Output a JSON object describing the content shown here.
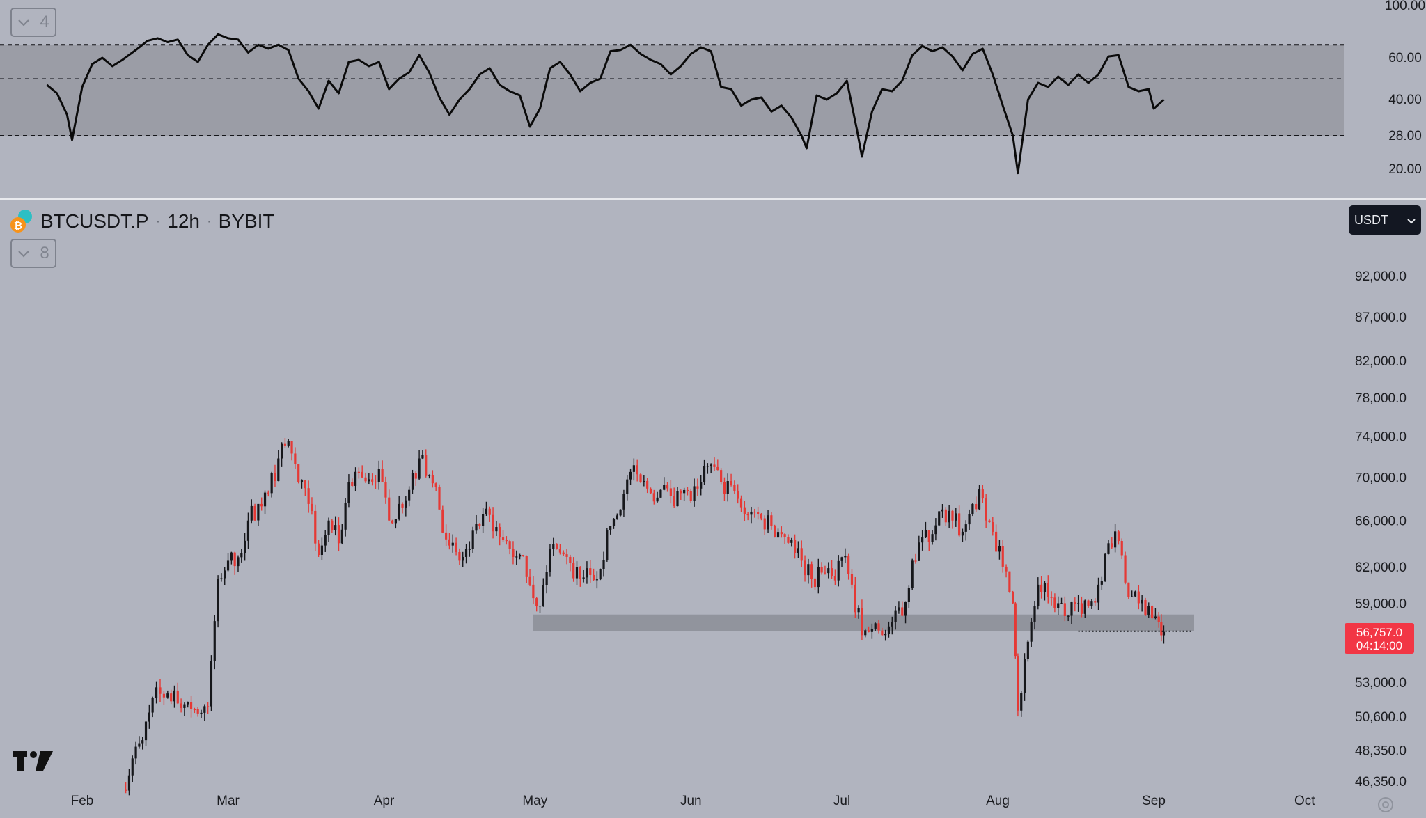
{
  "rsi_pane": {
    "collapse_count": "4",
    "axis_labels": [
      "100.00",
      "60.00",
      "40.00",
      "28.00",
      "20.00"
    ]
  },
  "header": {
    "symbol": "BTCUSDT.P",
    "interval": "12h",
    "exchange": "BYBIT",
    "currency": "USDT",
    "collapse_count": "8"
  },
  "price_axis": [
    "92,000.0",
    "87,000.0",
    "82,000.0",
    "78,000.0",
    "74,000.0",
    "70,000.0",
    "66,000.0",
    "62,000.0",
    "59,000.0",
    "53,000.0",
    "50,600.0",
    "48,350.0",
    "46,350.0"
  ],
  "last_price": {
    "price": "56,757.0",
    "countdown": "04:14:00",
    "color": "#f23645"
  },
  "time_axis": [
    "Feb",
    "Mar",
    "Apr",
    "May",
    "Jun",
    "Jul",
    "Aug",
    "Sep",
    "Oct"
  ],
  "colors": {
    "background": "#b1b4bf",
    "band": "#9b9da6",
    "up_candle": "#16171b",
    "down_candle": "#e53935",
    "rsi_line": "#0b0b0b",
    "zone": "#8c8e97"
  },
  "chart_data": [
    {
      "type": "line",
      "name": "rsi",
      "x_range": [
        "2024-02-01",
        "2024-09-03"
      ],
      "ylim": [
        0,
        100
      ],
      "band": [
        28,
        70
      ],
      "midline": 50,
      "points": [
        [
          "2024-01-25",
          47
        ],
        [
          "2024-01-27",
          43
        ],
        [
          "2024-01-29",
          35
        ],
        [
          "2024-01-30",
          27
        ],
        [
          "2024-02-01",
          46
        ],
        [
          "2024-02-03",
          57
        ],
        [
          "2024-02-05",
          60
        ],
        [
          "2024-02-07",
          56
        ],
        [
          "2024-02-09",
          59
        ],
        [
          "2024-02-12",
          67
        ],
        [
          "2024-02-14",
          73
        ],
        [
          "2024-02-16",
          75
        ],
        [
          "2024-02-18",
          72
        ],
        [
          "2024-02-20",
          74
        ],
        [
          "2024-02-22",
          62
        ],
        [
          "2024-02-24",
          58
        ],
        [
          "2024-02-26",
          70
        ],
        [
          "2024-02-28",
          78
        ],
        [
          "2024-03-01",
          75
        ],
        [
          "2024-03-03",
          74
        ],
        [
          "2024-03-05",
          64
        ],
        [
          "2024-03-07",
          70
        ],
        [
          "2024-03-09",
          67
        ],
        [
          "2024-03-11",
          70
        ],
        [
          "2024-03-13",
          66
        ],
        [
          "2024-03-15",
          50
        ],
        [
          "2024-03-17",
          44
        ],
        [
          "2024-03-19",
          37
        ],
        [
          "2024-03-21",
          49
        ],
        [
          "2024-03-23",
          43
        ],
        [
          "2024-03-25",
          58
        ],
        [
          "2024-03-27",
          59
        ],
        [
          "2024-03-29",
          56
        ],
        [
          "2024-03-31",
          58
        ],
        [
          "2024-04-02",
          45
        ],
        [
          "2024-04-04",
          50
        ],
        [
          "2024-04-06",
          53
        ],
        [
          "2024-04-08",
          62
        ],
        [
          "2024-04-10",
          53
        ],
        [
          "2024-04-12",
          41
        ],
        [
          "2024-04-14",
          35
        ],
        [
          "2024-04-16",
          40
        ],
        [
          "2024-04-18",
          45
        ],
        [
          "2024-04-20",
          52
        ],
        [
          "2024-04-22",
          55
        ],
        [
          "2024-04-24",
          47
        ],
        [
          "2024-04-26",
          44
        ],
        [
          "2024-04-28",
          42
        ],
        [
          "2024-04-30",
          31
        ],
        [
          "2024-05-02",
          37
        ],
        [
          "2024-05-04",
          55
        ],
        [
          "2024-05-06",
          58
        ],
        [
          "2024-05-08",
          52
        ],
        [
          "2024-05-10",
          44
        ],
        [
          "2024-05-12",
          48
        ],
        [
          "2024-05-14",
          50
        ],
        [
          "2024-05-16",
          65
        ],
        [
          "2024-05-18",
          66
        ],
        [
          "2024-05-20",
          70
        ],
        [
          "2024-05-22",
          63
        ],
        [
          "2024-05-24",
          59
        ],
        [
          "2024-05-26",
          57
        ],
        [
          "2024-05-28",
          52
        ],
        [
          "2024-05-30",
          56
        ],
        [
          "2024-06-01",
          63
        ],
        [
          "2024-06-03",
          68
        ],
        [
          "2024-06-05",
          65
        ],
        [
          "2024-06-07",
          46
        ],
        [
          "2024-06-09",
          45
        ],
        [
          "2024-06-11",
          38
        ],
        [
          "2024-06-13",
          40
        ],
        [
          "2024-06-15",
          41
        ],
        [
          "2024-06-17",
          36
        ],
        [
          "2024-06-19",
          38
        ],
        [
          "2024-06-21",
          34
        ],
        [
          "2024-06-23",
          28
        ],
        [
          "2024-06-24",
          25
        ],
        [
          "2024-06-26",
          42
        ],
        [
          "2024-06-28",
          40
        ],
        [
          "2024-06-30",
          43
        ],
        [
          "2024-07-02",
          49
        ],
        [
          "2024-07-04",
          30
        ],
        [
          "2024-07-05",
          23
        ],
        [
          "2024-07-07",
          36
        ],
        [
          "2024-07-09",
          45
        ],
        [
          "2024-07-11",
          44
        ],
        [
          "2024-07-13",
          49
        ],
        [
          "2024-07-15",
          62
        ],
        [
          "2024-07-17",
          69
        ],
        [
          "2024-07-19",
          65
        ],
        [
          "2024-07-21",
          68
        ],
        [
          "2024-07-23",
          61
        ],
        [
          "2024-07-25",
          54
        ],
        [
          "2024-07-27",
          63
        ],
        [
          "2024-07-29",
          67
        ],
        [
          "2024-07-31",
          52
        ],
        [
          "2024-08-02",
          38
        ],
        [
          "2024-08-04",
          28
        ],
        [
          "2024-08-05",
          18
        ],
        [
          "2024-08-07",
          40
        ],
        [
          "2024-08-09",
          48
        ],
        [
          "2024-08-11",
          46
        ],
        [
          "2024-08-13",
          51
        ],
        [
          "2024-08-15",
          47
        ],
        [
          "2024-08-17",
          52
        ],
        [
          "2024-08-19",
          48
        ],
        [
          "2024-08-21",
          52
        ],
        [
          "2024-08-23",
          61
        ],
        [
          "2024-08-25",
          62
        ],
        [
          "2024-08-27",
          46
        ],
        [
          "2024-08-29",
          44
        ],
        [
          "2024-08-31",
          45
        ],
        [
          "2024-09-01",
          37
        ],
        [
          "2024-09-03",
          40
        ]
      ]
    },
    {
      "type": "candlestick",
      "name": "BTCUSDT.P",
      "x_range": [
        "2024-02-01",
        "2024-10-01"
      ],
      "y_scale": "log",
      "ylim": [
        45600,
        103000
      ],
      "points": [
        [
          "2024-02-09",
          45800
        ],
        [
          "2024-02-11",
          47800
        ],
        [
          "2024-02-13",
          49000
        ],
        [
          "2024-02-15",
          51900
        ],
        [
          "2024-02-18",
          52200
        ],
        [
          "2024-02-20",
          51500
        ],
        [
          "2024-02-22",
          51600
        ],
        [
          "2024-02-24",
          50800
        ],
        [
          "2024-02-26",
          51300
        ],
        [
          "2024-02-28",
          61000
        ],
        [
          "2024-03-01",
          62500
        ],
        [
          "2024-03-03",
          62800
        ],
        [
          "2024-03-05",
          66000
        ],
        [
          "2024-03-07",
          67500
        ],
        [
          "2024-03-09",
          68500
        ],
        [
          "2024-03-11",
          71800
        ],
        [
          "2024-03-13",
          73500
        ],
        [
          "2024-03-15",
          69500
        ],
        [
          "2024-03-17",
          67500
        ],
        [
          "2024-03-19",
          63000
        ],
        [
          "2024-03-21",
          66000
        ],
        [
          "2024-03-23",
          64000
        ],
        [
          "2024-03-25",
          69500
        ],
        [
          "2024-03-27",
          70500
        ],
        [
          "2024-03-29",
          69800
        ],
        [
          "2024-03-31",
          70800
        ],
        [
          "2024-04-02",
          66000
        ],
        [
          "2024-04-04",
          67500
        ],
        [
          "2024-04-06",
          68800
        ],
        [
          "2024-04-08",
          71800
        ],
        [
          "2024-04-10",
          70200
        ],
        [
          "2024-04-12",
          67000
        ],
        [
          "2024-04-14",
          63800
        ],
        [
          "2024-04-16",
          62500
        ],
        [
          "2024-04-18",
          63500
        ],
        [
          "2024-04-20",
          65500
        ],
        [
          "2024-04-22",
          66500
        ],
        [
          "2024-04-24",
          64500
        ],
        [
          "2024-04-26",
          63500
        ],
        [
          "2024-04-28",
          63000
        ],
        [
          "2024-04-30",
          60500
        ],
        [
          "2024-05-02",
          58800
        ],
        [
          "2024-05-04",
          63500
        ],
        [
          "2024-05-06",
          63200
        ],
        [
          "2024-05-08",
          62300
        ],
        [
          "2024-05-10",
          61000
        ],
        [
          "2024-05-12",
          61300
        ],
        [
          "2024-05-14",
          61800
        ],
        [
          "2024-05-16",
          65500
        ],
        [
          "2024-05-18",
          67000
        ],
        [
          "2024-05-20",
          70500
        ],
        [
          "2024-05-22",
          69500
        ],
        [
          "2024-05-24",
          68500
        ],
        [
          "2024-05-26",
          68800
        ],
        [
          "2024-05-28",
          68200
        ],
        [
          "2024-05-30",
          68500
        ],
        [
          "2024-06-01",
          67800
        ],
        [
          "2024-06-03",
          69500
        ],
        [
          "2024-06-05",
          71200
        ],
        [
          "2024-06-07",
          69500
        ],
        [
          "2024-06-09",
          69300
        ],
        [
          "2024-06-11",
          67200
        ],
        [
          "2024-06-13",
          66800
        ],
        [
          "2024-06-15",
          66200
        ],
        [
          "2024-06-17",
          65500
        ],
        [
          "2024-06-19",
          64800
        ],
        [
          "2024-06-21",
          64300
        ],
        [
          "2024-06-23",
          62500
        ],
        [
          "2024-06-25",
          61000
        ],
        [
          "2024-06-27",
          61500
        ],
        [
          "2024-06-29",
          61200
        ],
        [
          "2024-07-01",
          62800
        ],
        [
          "2024-07-03",
          60500
        ],
        [
          "2024-07-05",
          56500
        ],
        [
          "2024-07-07",
          57000
        ],
        [
          "2024-07-09",
          56500
        ],
        [
          "2024-07-11",
          57500
        ],
        [
          "2024-07-13",
          58000
        ],
        [
          "2024-07-15",
          62500
        ],
        [
          "2024-07-17",
          64500
        ],
        [
          "2024-07-19",
          64800
        ],
        [
          "2024-07-21",
          67000
        ],
        [
          "2024-07-23",
          66000
        ],
        [
          "2024-07-25",
          65000
        ],
        [
          "2024-07-27",
          67500
        ],
        [
          "2024-07-29",
          68000
        ],
        [
          "2024-07-31",
          65000
        ],
        [
          "2024-08-02",
          62000
        ],
        [
          "2024-08-04",
          59000
        ],
        [
          "2024-08-05",
          51000
        ],
        [
          "2024-08-07",
          56000
        ],
        [
          "2024-08-09",
          60500
        ],
        [
          "2024-08-11",
          59500
        ],
        [
          "2024-08-13",
          59000
        ],
        [
          "2024-08-15",
          58000
        ],
        [
          "2024-08-17",
          59000
        ],
        [
          "2024-08-19",
          58800
        ],
        [
          "2024-08-21",
          60500
        ],
        [
          "2024-08-23",
          64000
        ],
        [
          "2024-08-25",
          64200
        ],
        [
          "2024-08-27",
          59500
        ],
        [
          "2024-08-29",
          59000
        ],
        [
          "2024-08-31",
          58800
        ],
        [
          "2024-09-02",
          57500
        ],
        [
          "2024-09-03",
          56757
        ]
      ],
      "support_zone": [
        56800,
        58100
      ],
      "level_line": 56800,
      "level_line_from": "2024-08-17"
    }
  ]
}
